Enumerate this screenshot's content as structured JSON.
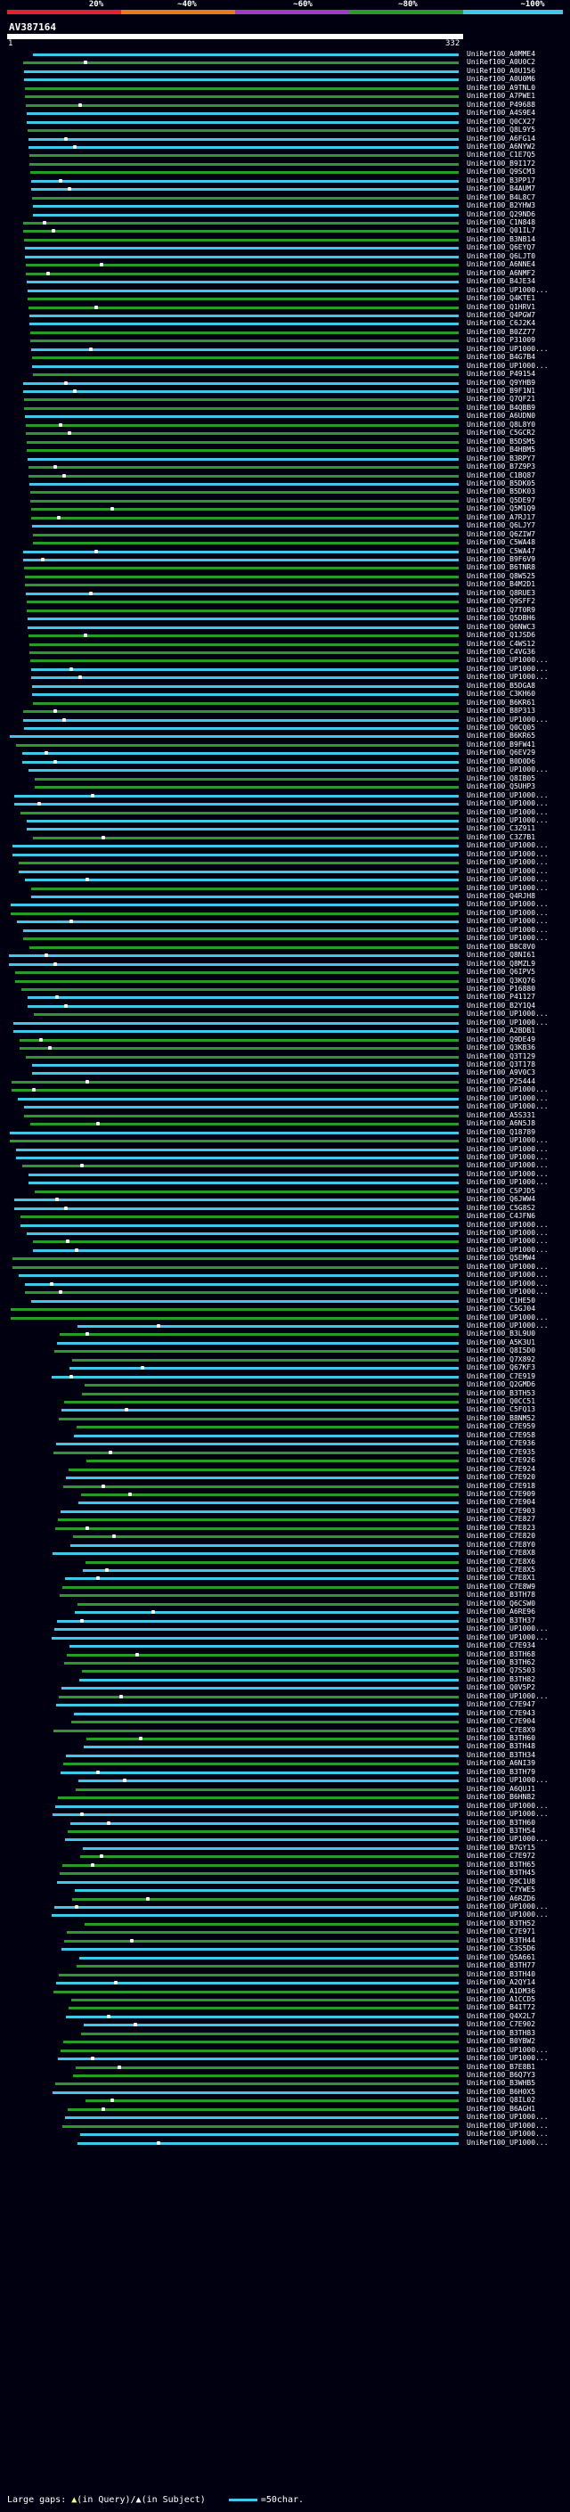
{
  "legend": {
    "percent_labels": [
      "20%",
      "~40%",
      "~60%",
      "~80%",
      "~100%"
    ],
    "colors": [
      "#e8202a",
      "#e87a1a",
      "#a03cc8",
      "#2a9a2a",
      "#3fc9e8"
    ]
  },
  "query": {
    "id": "AV387164",
    "start": "1",
    "end": "332"
  },
  "hits": [
    "UniRef100_A0MME4",
    "UniRef100_A0U0C2",
    "UniRef100_A0U156",
    "UniRef100_A0U0M6",
    "UniRef100_A9TNL0",
    "UniRef100_A7PWE1",
    "UniRef100_P49688",
    "UniRef100_A4S9E4",
    "UniRef100_Q0CX27",
    "UniRef100_Q8L9Y5",
    "UniRef100_A6FG14",
    "UniRef100_A6NYW2",
    "UniRef100_C1E7Q5",
    "UniRef100_B9I172",
    "UniRef100_Q9SCM3",
    "UniRef100_B3PP17",
    "UniRef100_B4AUM7",
    "UniRef100_B4L8C7",
    "UniRef100_B2YHW3",
    "UniRef100_Q29ND6",
    "UniRef100_C1N848",
    "UniRef100_Q01IL7",
    "UniRef100_B3NB14",
    "UniRef100_Q6EYQ7",
    "UniRef100_Q6LJT0",
    "UniRef100_A6NNE4",
    "UniRef100_A6NMF2",
    "UniRef100_B4JE34",
    "UniRef100_UP1000...",
    "UniRef100_Q4KTE1",
    "UniRef100_Q1HRV1",
    "UniRef100_Q4PGW7",
    "UniRef100_C6J2K4",
    "UniRef100_B0ZZ77",
    "UniRef100_P31009",
    "UniRef100_UP1000...",
    "UniRef100_B4G7B4",
    "UniRef100_UP1000...",
    "UniRef100_P49154",
    "UniRef100_Q9YHB9",
    "UniRef100_B9F1N1",
    "UniRef100_Q7QF21",
    "UniRef100_B4QBB9",
    "UniRef100_A6UDN0",
    "UniRef100_Q8L8Y0",
    "UniRef100_C5GCR2",
    "UniRef100_B5DSM5",
    "UniRef100_B4HBM5",
    "UniRef100_B3RPY7",
    "UniRef100_B7Z9P3",
    "UniRef100_C1BQ87",
    "UniRef100_B5DK05",
    "UniRef100_B5DK03",
    "UniRef100_Q5DE97",
    "UniRef100_Q5M1Q9",
    "UniRef100_A7RJ17",
    "UniRef100_Q6LJY7",
    "UniRef100_Q6ZIW7",
    "UniRef100_C5WA48",
    "UniRef100_C5WA47",
    "UniRef100_B9F6V9",
    "UniRef100_B6TNR8",
    "UniRef100_Q8W525",
    "UniRef100_B4M2D1",
    "UniRef100_Q8RUE3",
    "UniRef100_Q9SFF2",
    "UniRef100_Q7T0R9",
    "UniRef100_Q5DBH6",
    "UniRef100_Q6NWC3",
    "UniRef100_Q1JSD6",
    "UniRef100_C4WS12",
    "UniRef100_C4VG36",
    "UniRef100_UP1000...",
    "UniRef100_UP1000...",
    "UniRef100_UP1000...",
    "UniRef100_B5DGA8",
    "UniRef100_C3KH60",
    "UniRef100_B6KR61",
    "UniRef100_B8P313",
    "UniRef100_UP1000...",
    "UniRef100_Q0CQ05",
    "UniRef100_B6KR65",
    "UniRef100_B9FW41",
    "UniRef100_Q6EV29",
    "UniRef100_B0D0D6",
    "UniRef100_UP1000...",
    "UniRef100_Q8IB05",
    "UniRef100_Q5UHP3",
    "UniRef100_UP1000...",
    "UniRef100_UP1000...",
    "UniRef100_UP1000...",
    "UniRef100_UP1000...",
    "UniRef100_C3Z911",
    "UniRef100_C3Z7B1",
    "UniRef100_UP1000...",
    "UniRef100_UP1000...",
    "UniRef100_UP1000...",
    "UniRef100_UP1000...",
    "UniRef100_UP1000...",
    "UniRef100_UP1000...",
    "UniRef100_Q4RJH8",
    "UniRef100_UP1000...",
    "UniRef100_UP1000...",
    "UniRef100_UP1000...",
    "UniRef100_UP1000...",
    "UniRef100_UP1000...",
    "UniRef100_B8C8V0",
    "UniRef100_Q8NI61",
    "UniRef100_Q8MZL9",
    "UniRef100_Q6IPV5",
    "UniRef100_Q3KQ76",
    "UniRef100_P16880",
    "UniRef100_P41127",
    "UniRef100_B2Y1Q4",
    "UniRef100_UP1000...",
    "UniRef100_UP1000...",
    "UniRef100_A2BDB1",
    "UniRef100_Q9DE49",
    "UniRef100_Q3KB36",
    "UniRef100_Q3T129",
    "UniRef100_Q3T178",
    "UniRef100_A9V0C3",
    "UniRef100_P25444",
    "UniRef100_UP1000...",
    "UniRef100_UP1000...",
    "UniRef100_UP1000...",
    "UniRef100_A5S331",
    "UniRef100_A6N5J8",
    "UniRef100_Q18789",
    "UniRef100_UP1000...",
    "UniRef100_UP1000...",
    "UniRef100_UP1000...",
    "UniRef100_UP1000...",
    "UniRef100_UP1000...",
    "UniRef100_UP1000...",
    "UniRef100_C5PJD5",
    "UniRef100_Q6JWW4",
    "UniRef100_C5G8S2",
    "UniRef100_C4JFN6",
    "UniRef100_UP1000...",
    "UniRef100_UP1000...",
    "UniRef100_UP1000...",
    "UniRef100_UP1000...",
    "UniRef100_Q5EMW4",
    "UniRef100_UP1000...",
    "UniRef100_UP1000...",
    "UniRef100_UP1000...",
    "UniRef100_UP1000...",
    "UniRef100_C1HE50",
    "UniRef100_C5GJ04",
    "UniRef100_UP1000...",
    "UniRef100_UP1000...",
    "UniRef100_B3L9U0",
    "UniRef100_A5K3U1",
    "UniRef100_Q8I5D0",
    "UniRef100_Q7X892",
    "UniRef100_Q67KF3",
    "UniRef100_C7E919",
    "UniRef100_Q2GMD6",
    "UniRef100_B3TH53",
    "UniRef100_Q0CC51",
    "UniRef100_C5FQ13",
    "UniRef100_B8NM52",
    "UniRef100_C7E959",
    "UniRef100_C7E958",
    "UniRef100_C7E936",
    "UniRef100_C7E935",
    "UniRef100_C7E926",
    "UniRef100_C7E924",
    "UniRef100_C7E920",
    "UniRef100_C7E918",
    "UniRef100_C7E909",
    "UniRef100_C7E904",
    "UniRef100_C7E903",
    "UniRef100_C7E827",
    "UniRef100_C7E823",
    "UniRef100_C7E820",
    "UniRef100_C7E8Y0",
    "UniRef100_C7E8X8",
    "UniRef100_C7E8X6",
    "UniRef100_C7E8X5",
    "UniRef100_C7E8X1",
    "UniRef100_C7E8W9",
    "UniRef100_B3TH78",
    "UniRef100_Q6CSW0",
    "UniRef100_A6RE96",
    "UniRef100_B3TH37",
    "UniRef100_UP1000...",
    "UniRef100_UP1000...",
    "UniRef100_C7E934",
    "UniRef100_B3TH68",
    "UniRef100_B3TH62",
    "UniRef100_Q7S503",
    "UniRef100_B3TH82",
    "UniRef100_Q0V5P2",
    "UniRef100_UP1000...",
    "UniRef100_C7E947",
    "UniRef100_C7E943",
    "UniRef100_C7E904",
    "UniRef100_C7E8X9",
    "UniRef100_B3TH60",
    "UniRef100_B3TH48",
    "UniRef100_B3TH34",
    "UniRef100_A6NI39",
    "UniRef100_B3TH79",
    "UniRef100_UP1000...",
    "UniRef100_A6QUJ1",
    "UniRef100_B6HN82",
    "UniRef100_UP1000...",
    "UniRef100_UP1000...",
    "UniRef100_B3TH60",
    "UniRef100_B3TH54",
    "UniRef100_UP1000...",
    "UniRef100_B7GY15",
    "UniRef100_C7E972",
    "UniRef100_B3TH65",
    "UniRef100_B3TH45",
    "UniRef100_Q9C1U8",
    "UniRef100_C7YWE5",
    "UniRef100_A6RZD6",
    "UniRef100_UP1000...",
    "UniRef100_UP1000...",
    "UniRef100_B3TH52",
    "UniRef100_C7E971",
    "UniRef100_B3TH44",
    "UniRef100_C3S5D6",
    "UniRef100_Q5A661",
    "UniRef100_B3TH77",
    "UniRef100_B3TH40",
    "UniRef100_A2QY14",
    "UniRef100_A1DM36",
    "UniRef100_A1CCD5",
    "UniRef100_B4IT72",
    "UniRef100_Q4X2L7",
    "UniRef100_C7E902",
    "UniRef100_B3TH83",
    "UniRef100_B0YBW2",
    "UniRef100_UP1000...",
    "UniRef100_UP1000...",
    "UniRef100_B7E8B1",
    "UniRef100_B6Q7Y3",
    "UniRef100_B3WHB5",
    "UniRef100_B6H0X5",
    "UniRef100_Q8IL02",
    "UniRef100_B6AGH1",
    "UniRef100_UP1000...",
    "UniRef100_UP1000...",
    "UniRef100_UP1000...",
    "UniRef100_UP1000..."
  ],
  "footer": {
    "large_gaps_label": "Large gaps:",
    "in_query_label": "(in Query)/",
    "in_subject_label": "(in Subject)",
    "scale_label": "=50char."
  }
}
